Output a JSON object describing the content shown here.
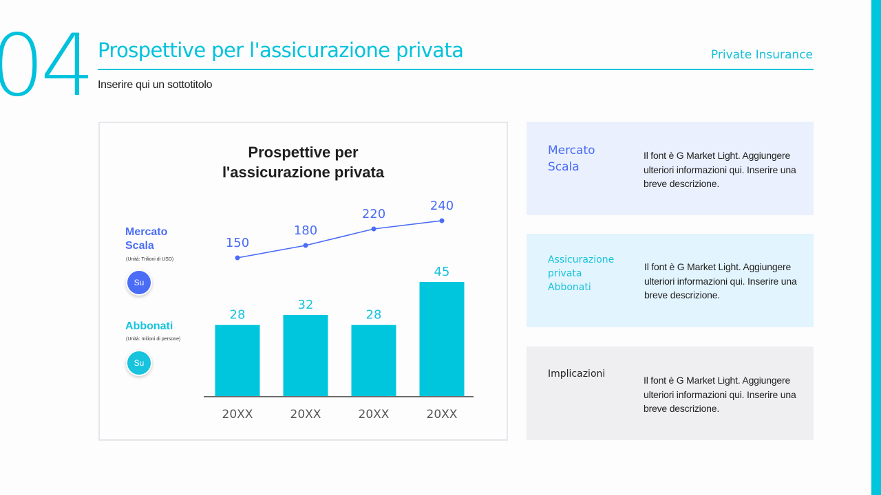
{
  "header": {
    "section_number": "04",
    "title": "Prospettive per l'assicurazione privata",
    "tag": "Private Insurance",
    "subtitle": "Inserire qui un sottotitolo"
  },
  "colors": {
    "accent_cyan": "#00c2dc",
    "accent_blue": "#4a6cf7",
    "card1_bg": "#eaf0fd",
    "card2_bg": "#e2f4fd",
    "card3_bg": "#efeff1"
  },
  "chart": {
    "title_line1": "Prospettive per",
    "title_line2": "l'assicurazione privata",
    "legend": {
      "market": {
        "label_line1": "Mercato",
        "label_line2": "Scala",
        "unit": "(Unità: Trilioni di USD)",
        "badge": "Su"
      },
      "subscribers": {
        "label": "Abbonati",
        "unit": "(Unità: milioni di persone)",
        "badge": "Su"
      }
    }
  },
  "chart_data": {
    "type": "bar",
    "title": "Prospettive per l'assicurazione privata",
    "categories": [
      "20XX",
      "20XX",
      "20XX",
      "20XX"
    ],
    "series": [
      {
        "name": "Mercato Scala (Unità: Trilioni di USD)",
        "type": "line",
        "color": "#4a6cf7",
        "values": [
          150,
          180,
          220,
          240
        ]
      },
      {
        "name": "Abbonati (Unità: milioni di persone)",
        "type": "bar",
        "color": "#00c6dd",
        "values": [
          28,
          32,
          28,
          45
        ]
      }
    ],
    "xlabel": "",
    "ylabel": "",
    "grid": false,
    "legend_position": "left"
  },
  "cards": [
    {
      "title": "Mercato Scala",
      "title_lines": [
        "Mercato",
        "Scala"
      ],
      "description": "Il font è G Market Light. Aggiungere ulteriori informazioni qui. Inserire una breve descrizione."
    },
    {
      "title": "Assicurazione privata Abbonati",
      "title_lines": [
        "Assicurazione",
        "privata",
        "Abbonati"
      ],
      "description": "Il font è G Market Light. Aggiungere ulteriori informazioni qui. Inserire una breve descrizione."
    },
    {
      "title": "Implicazioni",
      "title_lines": [
        "Implicazioni"
      ],
      "description": "Il font è G Market Light. Aggiungere ulteriori informazioni qui. Inserire una breve descrizione."
    }
  ]
}
